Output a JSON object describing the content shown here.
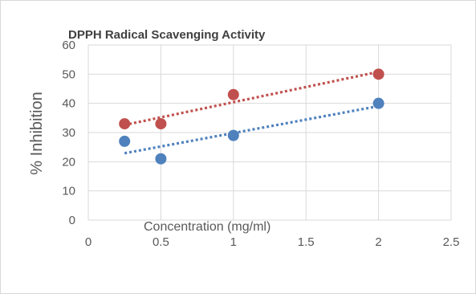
{
  "chart_data": {
    "type": "scatter",
    "title": "DPPH Radical Scavenging Activity",
    "xlabel": "Concentration (mg/ml)",
    "ylabel": "% Inhibition",
    "xlim": [
      0,
      2.5
    ],
    "ylim": [
      0,
      60
    ],
    "x_ticks": [
      "0",
      "0.5",
      "1",
      "1.5",
      "2",
      "2.5"
    ],
    "y_ticks": [
      "0",
      "10",
      "20",
      "30",
      "40",
      "50",
      "60"
    ],
    "grid": true,
    "legend": "none",
    "trendline": "linear, dotted",
    "series": [
      {
        "color": "#c0504d",
        "x": [
          0.25,
          0.5,
          1,
          2
        ],
        "y": [
          33,
          33,
          43,
          50
        ]
      },
      {
        "color": "#4f81bd",
        "x": [
          0.25,
          0.5,
          1,
          2
        ],
        "y": [
          27,
          21,
          29,
          40
        ]
      }
    ]
  }
}
